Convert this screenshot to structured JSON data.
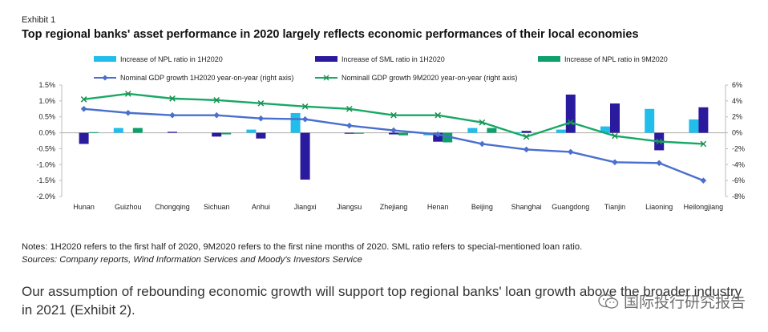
{
  "exhibit_label": "Exhibit 1",
  "chart_title": "Top regional banks' asset performance in 2020 largely reflects economic performances of their local economies",
  "colors": {
    "npl_1h": "#22BEEB",
    "sml_1h": "#2A1B9E",
    "npl_9m": "#0DA06A",
    "gdp_1h": "#4A6FCE",
    "gdp_9m": "#18A865"
  },
  "chart_data": {
    "type": "bar",
    "categories": [
      "Hunan",
      "Guizhou",
      "Chongqing",
      "Sichuan",
      "Anhui",
      "Jiangxi",
      "Jiangsu",
      "Zhejiang",
      "Henan",
      "Beijing",
      "Shanghai",
      "Guangdong",
      "Tianjin",
      "Liaoning",
      "Heilongjiang"
    ],
    "left_axis": {
      "ylim": [
        -2.0,
        1.5
      ],
      "ticks": [
        "1.5%",
        "1.0%",
        "0.5%",
        "0.0%",
        "-0.5%",
        "-1.0%",
        "-1.5%",
        "-2.0%"
      ]
    },
    "right_axis": {
      "ylim": [
        -8,
        6
      ],
      "ticks": [
        "6%",
        "4%",
        "2%",
        "0%",
        "-2%",
        "-4%",
        "-6%",
        "-8%"
      ]
    },
    "legend_position": "top",
    "series": [
      {
        "name": "Increase of NPL ratio in 1H2020",
        "kind": "bar",
        "axis": "left",
        "values": [
          0.0,
          0.15,
          0.0,
          0.0,
          0.1,
          0.62,
          0.0,
          0.0,
          -0.08,
          0.15,
          0.02,
          0.1,
          0.2,
          0.75,
          0.42
        ]
      },
      {
        "name": "Increase of SML ratio in 1H2020",
        "kind": "bar",
        "axis": "left",
        "values": [
          -0.35,
          0.0,
          0.03,
          -0.12,
          -0.18,
          -1.47,
          -0.03,
          -0.05,
          -0.28,
          0.0,
          0.06,
          1.2,
          0.92,
          -0.55,
          0.8
        ]
      },
      {
        "name": "Increase of NPL ratio in 9M2020",
        "kind": "bar",
        "axis": "left",
        "values": [
          0.02,
          0.15,
          0.0,
          -0.05,
          0.0,
          0.0,
          -0.03,
          -0.08,
          -0.3,
          0.15,
          0.0,
          0.0,
          0.0,
          0.0,
          0.0
        ]
      },
      {
        "name": "Nominal GDP growth 1H2020 year-on-year (right axis)",
        "kind": "line",
        "marker": "diamond",
        "axis": "right",
        "values": [
          3.0,
          2.5,
          2.2,
          2.2,
          1.8,
          1.7,
          0.9,
          0.3,
          -0.2,
          -1.4,
          -2.1,
          -2.4,
          -3.7,
          -3.8,
          -6.0
        ]
      },
      {
        "name": "Nominall GDP growth 9M2020 year-on-year (right axis)",
        "kind": "line",
        "marker": "x",
        "axis": "right",
        "values": [
          4.2,
          4.9,
          4.3,
          4.1,
          3.7,
          3.3,
          3.0,
          2.2,
          2.2,
          1.3,
          -0.5,
          1.3,
          -0.4,
          -1.1,
          -1.4
        ]
      }
    ]
  },
  "notes": "Notes: 1H2020 refers to the first half of 2020, 9M2020 refers to the first nine months of 2020. SML ratio refers to special-mentioned loan ratio.",
  "sources": "Sources: Company reports, Wind Information Services and Moody's Investors Service",
  "body_text": "Our assumption of rebounding economic growth will support top regional banks' loan growth above the broader industry in 2021 (Exhibit 2).",
  "watermark_text": "国际投行研究报告"
}
